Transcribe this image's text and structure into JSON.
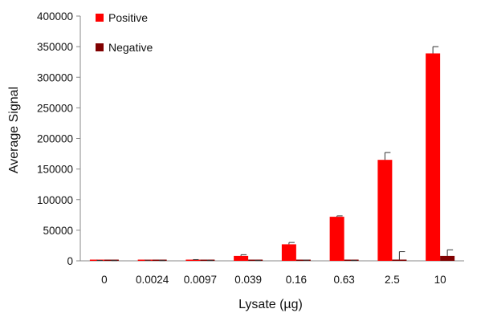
{
  "chart_data": {
    "type": "bar",
    "xlabel": "Lysate (µg)",
    "ylabel": "Average Signal",
    "categories": [
      "0",
      "0.0024",
      "0.0097",
      "0.039",
      "0.16",
      "0.63",
      "2.5",
      "10"
    ],
    "ylim": [
      0,
      400000
    ],
    "yticks": [
      0,
      50000,
      100000,
      150000,
      200000,
      250000,
      300000,
      350000,
      400000
    ],
    "ytick_labels": [
      "0",
      "50000",
      "100000",
      "150000",
      "200000",
      "250000",
      "300000",
      "350000",
      "400000"
    ],
    "grid": false,
    "legend_position": "top-left",
    "series": [
      {
        "name": "Positive",
        "color": "#ff0000",
        "values": [
          500,
          800,
          1500,
          8000,
          27000,
          72000,
          165000,
          339000
        ],
        "errors": [
          200,
          200,
          500,
          2000,
          3000,
          1500,
          12000,
          11000
        ]
      },
      {
        "name": "Negative",
        "color": "#800000",
        "values": [
          300,
          300,
          400,
          400,
          800,
          400,
          2000,
          8000
        ],
        "errors": [
          100,
          100,
          100,
          100,
          300,
          100,
          13000,
          10000
        ]
      }
    ]
  }
}
